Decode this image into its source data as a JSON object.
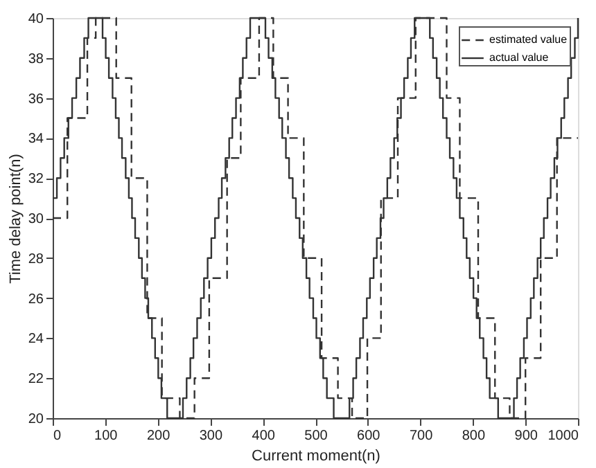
{
  "chart_data": {
    "type": "step",
    "xlabel": "Current moment(n)",
    "ylabel": "Time delay point(n)",
    "xlim": [
      0,
      1000
    ],
    "xticks": [
      0,
      100,
      200,
      300,
      400,
      500,
      600,
      700,
      800,
      900,
      1000
    ],
    "ylim": [
      20,
      40
    ],
    "yticks": [
      20,
      22,
      24,
      26,
      28,
      30,
      32,
      34,
      36,
      38,
      40
    ],
    "grid": false,
    "legend": "top right",
    "series": [
      {
        "name": "estimated value",
        "color": "#333333",
        "line_style": "dashed",
        "x": [
          0,
          28,
          66,
          82,
          121,
          150,
          180,
          208,
          242,
          270,
          298,
          332,
          358,
          393,
          420,
          448,
          478,
          512,
          543,
          570,
          599,
          625,
          657,
          691,
          750,
          775,
          810,
          842,
          870,
          900,
          929,
          960,
          1000
        ],
        "values": [
          30,
          35,
          39,
          40,
          37,
          32,
          25,
          21,
          20,
          22,
          27,
          33,
          37,
          40,
          37,
          34,
          28,
          23,
          21,
          20,
          24,
          31,
          36,
          40,
          36,
          31,
          25,
          21,
          20,
          23,
          28,
          34,
          34
        ]
      },
      {
        "name": "actual value",
        "color": "#333333",
        "line_style": "solid",
        "x": [
          0,
          8,
          15,
          22,
          30,
          37,
          45,
          52,
          60,
          68,
          95,
          101,
          107,
          114,
          120,
          126,
          132,
          139,
          145,
          151,
          157,
          164,
          170,
          176,
          182,
          189,
          195,
          201,
          207,
          218,
          248,
          255,
          262,
          268,
          275,
          282,
          288,
          295,
          302,
          309,
          316,
          322,
          329,
          336,
          342,
          349,
          356,
          362,
          369,
          376,
          405,
          411,
          418,
          424,
          431,
          437,
          444,
          450,
          457,
          463,
          470,
          476,
          483,
          489,
          496,
          502,
          509,
          515,
          522,
          535,
          565,
          572,
          578,
          585,
          591,
          598,
          604,
          611,
          617,
          624,
          630,
          637,
          643,
          650,
          656,
          663,
          669,
          676,
          682,
          689,
          718,
          724,
          731,
          737,
          743,
          750,
          756,
          763,
          769,
          775,
          782,
          788,
          794,
          801,
          807,
          813,
          820,
          826,
          832,
          848,
          878,
          884,
          890,
          897,
          903,
          910,
          916,
          923,
          929,
          935,
          942,
          948,
          955,
          961,
          968,
          974,
          981,
          987,
          994,
          1000
        ],
        "values": [
          31,
          32,
          33,
          34,
          35,
          36,
          37,
          38,
          39,
          40,
          39,
          38,
          37,
          36,
          35,
          34,
          33,
          32,
          31,
          30,
          29,
          28,
          27,
          26,
          25,
          24,
          23,
          22,
          21,
          20,
          21,
          22,
          23,
          24,
          25,
          26,
          27,
          28,
          29,
          30,
          31,
          32,
          33,
          34,
          35,
          36,
          37,
          38,
          39,
          40,
          39,
          38,
          37,
          36,
          35,
          34,
          33,
          32,
          31,
          30,
          29,
          28,
          27,
          26,
          25,
          24,
          23,
          22,
          21,
          20,
          21,
          22,
          23,
          24,
          25,
          26,
          27,
          28,
          29,
          30,
          31,
          32,
          33,
          34,
          35,
          36,
          37,
          38,
          39,
          40,
          39,
          38,
          37,
          36,
          35,
          34,
          33,
          32,
          31,
          30,
          29,
          28,
          27,
          26,
          25,
          24,
          23,
          22,
          21,
          20,
          21,
          22,
          23,
          24,
          25,
          26,
          27,
          28,
          29,
          30,
          31,
          32,
          33,
          34,
          35,
          36,
          37,
          38,
          39,
          40
        ]
      }
    ]
  }
}
